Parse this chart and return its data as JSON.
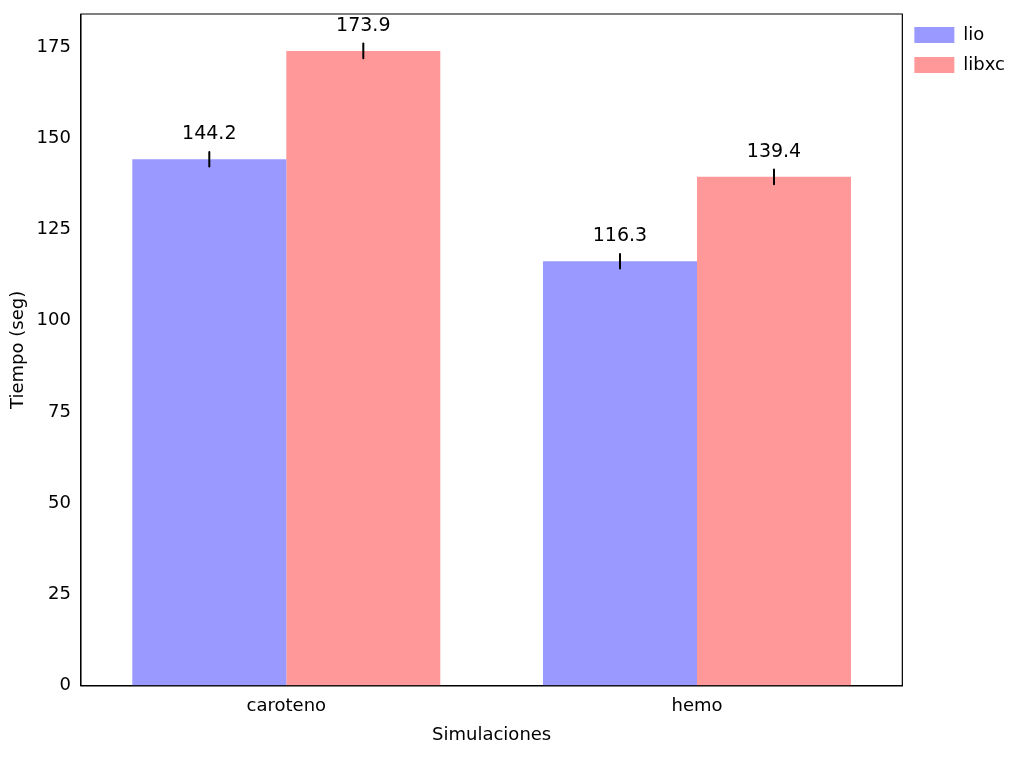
{
  "chart_data": {
    "type": "bar",
    "xlabel": "Simulaciones",
    "ylabel": "Tiempo (seg)",
    "categories": [
      "caroteno",
      "hemo"
    ],
    "series": [
      {
        "name": "lio",
        "color": "#9999ff",
        "values": [
          144.2,
          116.3
        ],
        "errors": [
          2,
          2
        ]
      },
      {
        "name": "libxc",
        "color": "#ff9999",
        "values": [
          173.9,
          139.4
        ],
        "errors": [
          2,
          2
        ]
      }
    ],
    "ylim": [
      0,
      184
    ],
    "yticks": [
      0,
      25,
      50,
      75,
      100,
      125,
      150,
      175
    ],
    "grid": false,
    "legend": "top right",
    "data_labels": true
  }
}
